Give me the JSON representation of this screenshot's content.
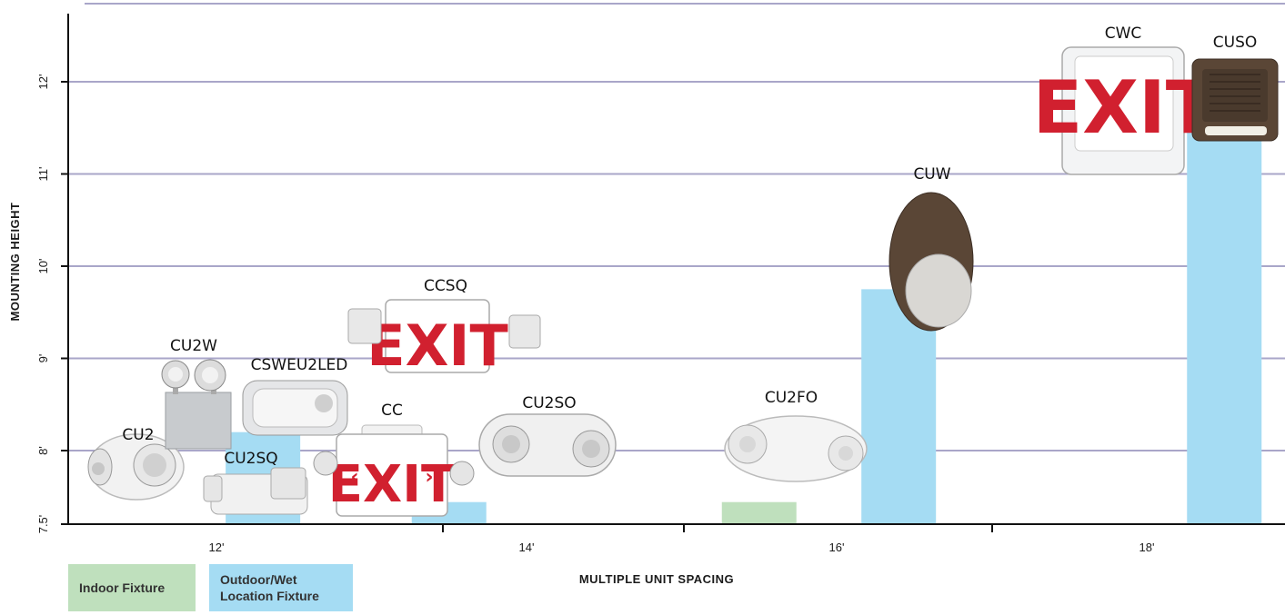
{
  "chart_data": {
    "type": "bar",
    "xlabel": "MULTIPLE UNIT SPACING",
    "ylabel": "MOUNTING HEIGHT",
    "x_ticks": [
      "12'",
      "14'",
      "16'",
      "18'"
    ],
    "y_ticks": [
      "7.5'",
      "8'",
      "9'",
      "10'",
      "11'",
      "12'"
    ],
    "ylim": [
      7.5,
      12.7
    ],
    "grid": true,
    "legend_placement": "bottom-left",
    "legend": [
      {
        "name": "Indoor Fixture",
        "color": "#bfe0bd"
      },
      {
        "name": "Outdoor/Wet Location Fixture",
        "color": "#a5dcf3"
      }
    ],
    "bars": [
      {
        "x": 12.3,
        "height": 8.2,
        "type": "outdoor"
      },
      {
        "x": 13.5,
        "height": 7.65,
        "type": "outdoor"
      },
      {
        "x": 15.5,
        "height": 7.65,
        "type": "indoor"
      },
      {
        "x": 16.4,
        "height": 9.75,
        "type": "outdoor"
      },
      {
        "x": 18.5,
        "height": 11.6,
        "type": "outdoor"
      }
    ],
    "fixtures": [
      "CU2",
      "CU2W",
      "CSWEU2LED",
      "CU2SQ",
      "CC",
      "CCSQ",
      "CU2SO",
      "CU2FO",
      "CUW",
      "CWC",
      "CUSO"
    ]
  },
  "legend_labels": {
    "indoor": "Indoor Fixture",
    "outdoor_line1": "Outdoor/Wet",
    "outdoor_line2": "Location Fixture"
  },
  "exit_text": "EXIT",
  "colors": {
    "indoor": "#bfe0bd",
    "outdoor": "#a5dcf3",
    "grid": "#a9a6c9",
    "exit_red": "#d1202f",
    "bronze": "#5a4636"
  }
}
